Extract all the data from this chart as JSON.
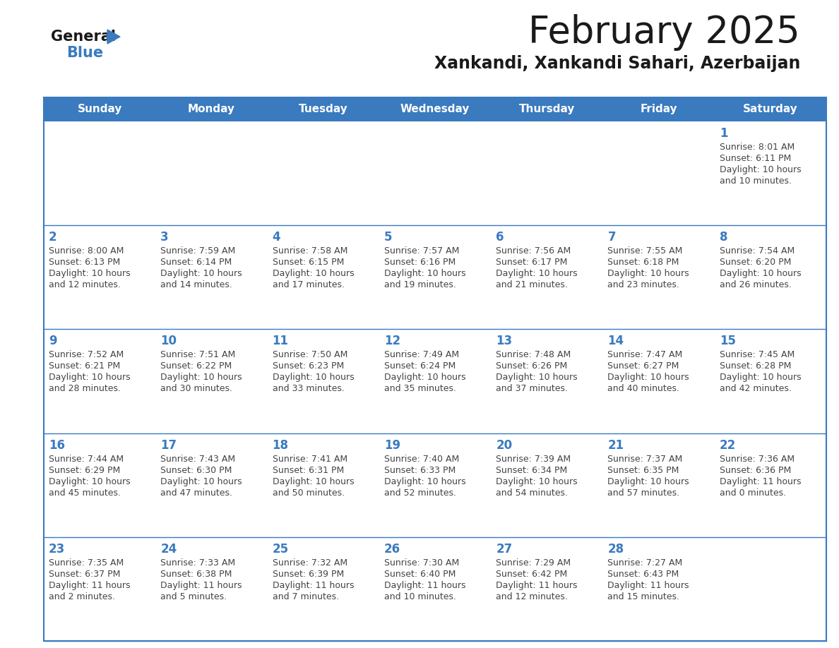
{
  "title": "February 2025",
  "subtitle": "Xankandi, Xankandi Sahari, Azerbaijan",
  "header_color": "#3a7abf",
  "header_text_color": "#ffffff",
  "day_names": [
    "Sunday",
    "Monday",
    "Tuesday",
    "Wednesday",
    "Thursday",
    "Friday",
    "Saturday"
  ],
  "background_color": "#ffffff",
  "cell_bg_color": "#ffffff",
  "border_color": "#3a7abf",
  "day_num_color": "#3a7abf",
  "text_color": "#444444",
  "calendar": [
    [
      null,
      null,
      null,
      null,
      null,
      null,
      {
        "day": 1,
        "sunrise": "8:01 AM",
        "sunset": "6:11 PM",
        "daylight_line1": "Daylight: 10 hours",
        "daylight_line2": "and 10 minutes."
      }
    ],
    [
      {
        "day": 2,
        "sunrise": "8:00 AM",
        "sunset": "6:13 PM",
        "daylight_line1": "Daylight: 10 hours",
        "daylight_line2": "and 12 minutes."
      },
      {
        "day": 3,
        "sunrise": "7:59 AM",
        "sunset": "6:14 PM",
        "daylight_line1": "Daylight: 10 hours",
        "daylight_line2": "and 14 minutes."
      },
      {
        "day": 4,
        "sunrise": "7:58 AM",
        "sunset": "6:15 PM",
        "daylight_line1": "Daylight: 10 hours",
        "daylight_line2": "and 17 minutes."
      },
      {
        "day": 5,
        "sunrise": "7:57 AM",
        "sunset": "6:16 PM",
        "daylight_line1": "Daylight: 10 hours",
        "daylight_line2": "and 19 minutes."
      },
      {
        "day": 6,
        "sunrise": "7:56 AM",
        "sunset": "6:17 PM",
        "daylight_line1": "Daylight: 10 hours",
        "daylight_line2": "and 21 minutes."
      },
      {
        "day": 7,
        "sunrise": "7:55 AM",
        "sunset": "6:18 PM",
        "daylight_line1": "Daylight: 10 hours",
        "daylight_line2": "and 23 minutes."
      },
      {
        "day": 8,
        "sunrise": "7:54 AM",
        "sunset": "6:20 PM",
        "daylight_line1": "Daylight: 10 hours",
        "daylight_line2": "and 26 minutes."
      }
    ],
    [
      {
        "day": 9,
        "sunrise": "7:52 AM",
        "sunset": "6:21 PM",
        "daylight_line1": "Daylight: 10 hours",
        "daylight_line2": "and 28 minutes."
      },
      {
        "day": 10,
        "sunrise": "7:51 AM",
        "sunset": "6:22 PM",
        "daylight_line1": "Daylight: 10 hours",
        "daylight_line2": "and 30 minutes."
      },
      {
        "day": 11,
        "sunrise": "7:50 AM",
        "sunset": "6:23 PM",
        "daylight_line1": "Daylight: 10 hours",
        "daylight_line2": "and 33 minutes."
      },
      {
        "day": 12,
        "sunrise": "7:49 AM",
        "sunset": "6:24 PM",
        "daylight_line1": "Daylight: 10 hours",
        "daylight_line2": "and 35 minutes."
      },
      {
        "day": 13,
        "sunrise": "7:48 AM",
        "sunset": "6:26 PM",
        "daylight_line1": "Daylight: 10 hours",
        "daylight_line2": "and 37 minutes."
      },
      {
        "day": 14,
        "sunrise": "7:47 AM",
        "sunset": "6:27 PM",
        "daylight_line1": "Daylight: 10 hours",
        "daylight_line2": "and 40 minutes."
      },
      {
        "day": 15,
        "sunrise": "7:45 AM",
        "sunset": "6:28 PM",
        "daylight_line1": "Daylight: 10 hours",
        "daylight_line2": "and 42 minutes."
      }
    ],
    [
      {
        "day": 16,
        "sunrise": "7:44 AM",
        "sunset": "6:29 PM",
        "daylight_line1": "Daylight: 10 hours",
        "daylight_line2": "and 45 minutes."
      },
      {
        "day": 17,
        "sunrise": "7:43 AM",
        "sunset": "6:30 PM",
        "daylight_line1": "Daylight: 10 hours",
        "daylight_line2": "and 47 minutes."
      },
      {
        "day": 18,
        "sunrise": "7:41 AM",
        "sunset": "6:31 PM",
        "daylight_line1": "Daylight: 10 hours",
        "daylight_line2": "and 50 minutes."
      },
      {
        "day": 19,
        "sunrise": "7:40 AM",
        "sunset": "6:33 PM",
        "daylight_line1": "Daylight: 10 hours",
        "daylight_line2": "and 52 minutes."
      },
      {
        "day": 20,
        "sunrise": "7:39 AM",
        "sunset": "6:34 PM",
        "daylight_line1": "Daylight: 10 hours",
        "daylight_line2": "and 54 minutes."
      },
      {
        "day": 21,
        "sunrise": "7:37 AM",
        "sunset": "6:35 PM",
        "daylight_line1": "Daylight: 10 hours",
        "daylight_line2": "and 57 minutes."
      },
      {
        "day": 22,
        "sunrise": "7:36 AM",
        "sunset": "6:36 PM",
        "daylight_line1": "Daylight: 11 hours",
        "daylight_line2": "and 0 minutes."
      }
    ],
    [
      {
        "day": 23,
        "sunrise": "7:35 AM",
        "sunset": "6:37 PM",
        "daylight_line1": "Daylight: 11 hours",
        "daylight_line2": "and 2 minutes."
      },
      {
        "day": 24,
        "sunrise": "7:33 AM",
        "sunset": "6:38 PM",
        "daylight_line1": "Daylight: 11 hours",
        "daylight_line2": "and 5 minutes."
      },
      {
        "day": 25,
        "sunrise": "7:32 AM",
        "sunset": "6:39 PM",
        "daylight_line1": "Daylight: 11 hours",
        "daylight_line2": "and 7 minutes."
      },
      {
        "day": 26,
        "sunrise": "7:30 AM",
        "sunset": "6:40 PM",
        "daylight_line1": "Daylight: 11 hours",
        "daylight_line2": "and 10 minutes."
      },
      {
        "day": 27,
        "sunrise": "7:29 AM",
        "sunset": "6:42 PM",
        "daylight_line1": "Daylight: 11 hours",
        "daylight_line2": "and 12 minutes."
      },
      {
        "day": 28,
        "sunrise": "7:27 AM",
        "sunset": "6:43 PM",
        "daylight_line1": "Daylight: 11 hours",
        "daylight_line2": "and 15 minutes."
      },
      null
    ]
  ]
}
